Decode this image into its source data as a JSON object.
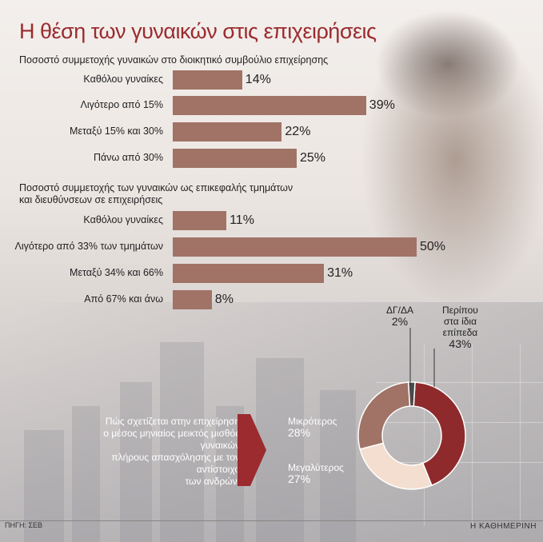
{
  "title": "Η θέση των γυναικών στις επιχειρήσεις",
  "section1": {
    "title": "Ποσοστό συμμετοχής γυναικών στο διοικητικό συμβούλιο επιχείρησης",
    "rows": [
      {
        "label": "Καθόλου γυναίκες",
        "value": "14%"
      },
      {
        "label": "Λιγότερο από 15%",
        "value": "39%"
      },
      {
        "label": "Μεταξύ 15% και 30%",
        "value": "22%"
      },
      {
        "label": "Πάνω από 30%",
        "value": "25%"
      }
    ]
  },
  "section2": {
    "title_line1": "Ποσοστό συμμετοχής των γυναικών ως επικεφαλής τμημάτων",
    "title_line2": "και διευθύνσεων σε επιχειρήσεις",
    "rows": [
      {
        "label": "Καθόλου γυναίκες",
        "value": "11%"
      },
      {
        "label": "Λιγότερο από 33% των τμημάτων",
        "value": "50%"
      },
      {
        "label": "Μεταξύ 34% και 66%",
        "value": "31%"
      },
      {
        "label": "Από 67% και άνω",
        "value": "8%"
      }
    ]
  },
  "callout": {
    "line1": "Πώς σχετίζεται στην επιχείρηση",
    "line2": "ο μέσος μηνιαίος μεικτός μισθός γυναικών",
    "line3": "πλήρους απασχόλησης με τον αντίστοιχο",
    "line4": "των ανδρών;"
  },
  "donut_labels": {
    "dg_name": "ΔΓ/ΔΑ",
    "dg_value": "2%",
    "same_l1": "Περίπου",
    "same_l2": "στα ίδια",
    "same_l3": "επίπεδα",
    "same_value": "43%",
    "small_name": "Μικρότερος",
    "small_value": "28%",
    "big_name": "Μεγαλύτερος",
    "big_value": "27%"
  },
  "footer": {
    "source": "ΠΗΓΗ: ΣΕΒ",
    "publisher": "Η ΚΑΘΗΜΕΡΙΝΗ"
  },
  "colors": {
    "title": "#9b2b2f",
    "bar": "#a07366",
    "same": "#8e2a2c",
    "smaller": "#a07366",
    "bigger": "#f3ded0",
    "dg": "#4a4a4a"
  },
  "chart_data": [
    {
      "type": "bar",
      "title": "Ποσοστό συμμετοχής γυναικών στο διοικητικό συμβούλιο επιχείρησης",
      "categories": [
        "Καθόλου γυναίκες",
        "Λιγότερο από 15%",
        "Μεταξύ 15% και 30%",
        "Πάνω από 30%"
      ],
      "values": [
        14,
        39,
        22,
        25
      ],
      "orientation": "horizontal"
    },
    {
      "type": "bar",
      "title": "Ποσοστό συμμετοχής των γυναικών ως επικεφαλής τμημάτων και διευθύνσεων σε επιχειρήσεις",
      "categories": [
        "Καθόλου γυναίκες",
        "Λιγότερο από 33% των τμημάτων",
        "Μεταξύ 34% και 66%",
        "Από 67% και άνω"
      ],
      "values": [
        11,
        50,
        31,
        8
      ],
      "orientation": "horizontal"
    },
    {
      "type": "pie",
      "title": "Πώς σχετίζεται στην επιχείρηση ο μέσος μηνιαίος μεικτός μισθός γυναικών πλήρους απασχόλησης με τον αντίστοιχο των ανδρών;",
      "categories": [
        "Περίπου στα ίδια επίπεδα",
        "Μεγαλύτερος",
        "Μικρότερος",
        "ΔΓ/ΔΑ"
      ],
      "values": [
        43,
        27,
        28,
        2
      ]
    }
  ]
}
